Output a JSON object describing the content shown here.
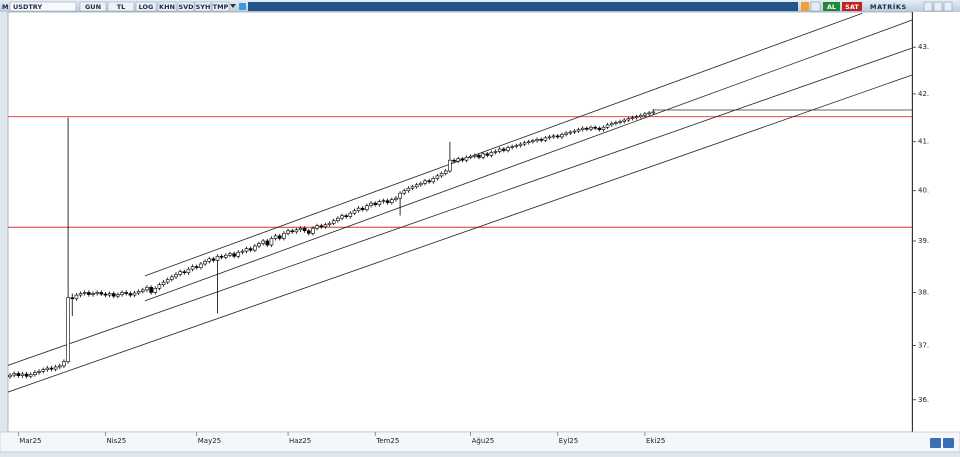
{
  "toolbar": {
    "symbol_prefix": "M",
    "symbol": "USDTRY",
    "buttons": [
      "GUN",
      "TL",
      "LOG",
      "KHN",
      "SVD",
      "SYH",
      "TMP"
    ],
    "buy": "AL",
    "sell": "SAT",
    "brand": "MATRİKS"
  },
  "chart_data": {
    "type": "candlestick",
    "log_scale": true,
    "ylim": [
      35.42,
      43.77
    ],
    "yticks": [
      {
        "value": 36,
        "label": "36."
      },
      {
        "value": 37,
        "label": "37."
      },
      {
        "value": 38,
        "label": "38."
      },
      {
        "value": 39,
        "label": "39."
      },
      {
        "value": 40,
        "label": "40."
      },
      {
        "value": 41,
        "label": "41."
      },
      {
        "value": 42,
        "label": "42."
      },
      {
        "value": 43,
        "label": "43."
      }
    ],
    "up_color": "#ffffff",
    "down_color": "#000000",
    "line_color": "#222222",
    "hline_color": "#e03030",
    "categories": [
      null,
      null,
      "Mar25",
      null,
      null,
      null,
      null,
      null,
      null,
      null,
      null,
      null,
      null,
      null,
      null,
      null,
      null,
      null,
      null,
      null,
      null,
      null,
      null,
      "Nis25",
      null,
      null,
      null,
      null,
      null,
      null,
      null,
      null,
      null,
      null,
      null,
      null,
      null,
      null,
      null,
      null,
      null,
      null,
      null,
      null,
      null,
      "May25",
      null,
      null,
      null,
      null,
      null,
      null,
      null,
      null,
      null,
      null,
      null,
      null,
      null,
      null,
      null,
      null,
      null,
      null,
      null,
      null,
      null,
      "Haz25",
      null,
      null,
      null,
      null,
      null,
      null,
      null,
      null,
      null,
      null,
      null,
      null,
      null,
      null,
      null,
      null,
      null,
      null,
      null,
      null,
      "Tem25",
      null,
      null,
      null,
      null,
      null,
      null,
      null,
      null,
      null,
      null,
      null,
      null,
      null,
      null,
      null,
      null,
      null,
      null,
      null,
      null,
      null,
      null,
      "Ağu25",
      null,
      null,
      null,
      null,
      null,
      null,
      null,
      null,
      null,
      null,
      null,
      null,
      null,
      null,
      null,
      null,
      null,
      null,
      null,
      null,
      "Eyl25",
      null,
      null,
      null,
      null,
      null,
      null,
      null,
      null,
      null,
      null,
      null,
      null,
      null,
      null,
      null,
      null,
      null,
      null,
      null,
      null,
      "Eki25",
      null,
      null
    ],
    "ohlc": [
      [
        36.42,
        36.49,
        36.38,
        36.45
      ],
      [
        36.45,
        36.52,
        36.41,
        36.48
      ],
      [
        36.48,
        36.52,
        36.4,
        36.44
      ],
      [
        36.44,
        36.51,
        36.4,
        36.47
      ],
      [
        36.47,
        36.51,
        36.39,
        36.43
      ],
      [
        36.43,
        36.5,
        36.39,
        36.46
      ],
      [
        36.46,
        36.54,
        36.42,
        36.5
      ],
      [
        36.5,
        36.56,
        36.46,
        36.52
      ],
      [
        36.52,
        36.59,
        36.48,
        36.55
      ],
      [
        36.55,
        36.62,
        36.51,
        36.58
      ],
      [
        36.58,
        36.62,
        36.52,
        36.56
      ],
      [
        36.56,
        36.64,
        36.52,
        36.6
      ],
      [
        36.6,
        36.66,
        36.56,
        36.62
      ],
      [
        36.62,
        36.74,
        36.58,
        36.7
      ],
      [
        36.7,
        41.5,
        36.66,
        37.9
      ],
      [
        37.9,
        37.98,
        37.55,
        37.88
      ],
      [
        37.88,
        37.99,
        37.84,
        37.95
      ],
      [
        37.95,
        38.02,
        37.91,
        37.98
      ],
      [
        37.98,
        38.04,
        37.94,
        38.0
      ],
      [
        38.0,
        38.04,
        37.92,
        37.96
      ],
      [
        37.96,
        38.02,
        37.92,
        37.98
      ],
      [
        37.98,
        38.04,
        37.94,
        38.0
      ],
      [
        38.0,
        38.04,
        37.93,
        37.97
      ],
      [
        37.97,
        38.01,
        37.91,
        37.95
      ],
      [
        37.95,
        38.02,
        37.91,
        37.98
      ],
      [
        37.98,
        38.02,
        37.89,
        37.93
      ],
      [
        37.93,
        38.0,
        37.89,
        37.96
      ],
      [
        37.96,
        38.04,
        37.92,
        38.0
      ],
      [
        38.0,
        38.04,
        37.94,
        37.98
      ],
      [
        37.98,
        38.02,
        37.91,
        37.95
      ],
      [
        37.95,
        38.03,
        37.91,
        37.99
      ],
      [
        37.99,
        38.06,
        37.95,
        38.02
      ],
      [
        38.02,
        38.09,
        37.98,
        38.05
      ],
      [
        38.05,
        38.14,
        38.01,
        38.1
      ],
      [
        38.1,
        38.14,
        37.96,
        38.0
      ],
      [
        38.0,
        38.12,
        37.96,
        38.08
      ],
      [
        38.08,
        38.19,
        38.04,
        38.15
      ],
      [
        38.15,
        38.24,
        38.11,
        38.2
      ],
      [
        38.2,
        38.29,
        38.16,
        38.25
      ],
      [
        38.25,
        38.34,
        38.21,
        38.3
      ],
      [
        38.3,
        38.39,
        38.26,
        38.35
      ],
      [
        38.35,
        38.44,
        38.31,
        38.4
      ],
      [
        38.4,
        38.44,
        38.34,
        38.38
      ],
      [
        38.38,
        38.49,
        38.34,
        38.45
      ],
      [
        38.45,
        38.54,
        38.41,
        38.5
      ],
      [
        38.5,
        38.54,
        38.44,
        38.48
      ],
      [
        38.48,
        38.59,
        38.44,
        38.55
      ],
      [
        38.55,
        38.64,
        38.51,
        38.6
      ],
      [
        38.6,
        38.69,
        38.56,
        38.65
      ],
      [
        38.65,
        38.69,
        38.58,
        38.62
      ],
      [
        38.62,
        38.74,
        37.6,
        38.7
      ],
      [
        38.7,
        38.74,
        38.64,
        38.68
      ],
      [
        38.68,
        38.76,
        38.64,
        38.72
      ],
      [
        38.72,
        38.79,
        38.68,
        38.75
      ],
      [
        38.75,
        38.79,
        38.66,
        38.7
      ],
      [
        38.7,
        38.82,
        38.66,
        38.78
      ],
      [
        38.78,
        38.84,
        38.74,
        38.8
      ],
      [
        38.8,
        38.89,
        38.76,
        38.85
      ],
      [
        38.85,
        38.89,
        38.78,
        38.82
      ],
      [
        38.82,
        38.94,
        38.78,
        38.9
      ],
      [
        38.9,
        38.99,
        38.86,
        38.95
      ],
      [
        38.95,
        39.04,
        38.91,
        39.0
      ],
      [
        39.0,
        39.04,
        38.88,
        38.92
      ],
      [
        38.92,
        39.09,
        38.88,
        39.05
      ],
      [
        39.05,
        39.14,
        39.01,
        39.1
      ],
      [
        39.1,
        39.14,
        39.01,
        39.05
      ],
      [
        39.05,
        39.19,
        39.01,
        39.15
      ],
      [
        39.15,
        39.24,
        39.11,
        39.2
      ],
      [
        39.2,
        39.24,
        39.14,
        39.18
      ],
      [
        39.18,
        39.26,
        39.14,
        39.22
      ],
      [
        39.22,
        39.29,
        39.18,
        39.25
      ],
      [
        39.25,
        39.29,
        39.16,
        39.2
      ],
      [
        39.2,
        39.24,
        39.11,
        39.15
      ],
      [
        39.15,
        39.29,
        39.11,
        39.25
      ],
      [
        39.25,
        39.34,
        39.21,
        39.3
      ],
      [
        39.3,
        39.34,
        39.24,
        39.28
      ],
      [
        39.28,
        39.36,
        39.24,
        39.32
      ],
      [
        39.32,
        39.39,
        39.28,
        39.35
      ],
      [
        39.35,
        39.44,
        39.31,
        39.4
      ],
      [
        39.4,
        39.49,
        39.36,
        39.45
      ],
      [
        39.45,
        39.54,
        39.41,
        39.5
      ],
      [
        39.5,
        39.54,
        39.44,
        39.48
      ],
      [
        39.48,
        39.59,
        39.44,
        39.55
      ],
      [
        39.55,
        39.64,
        39.51,
        39.6
      ],
      [
        39.6,
        39.69,
        39.56,
        39.65
      ],
      [
        39.65,
        39.69,
        39.58,
        39.62
      ],
      [
        39.62,
        39.74,
        39.58,
        39.7
      ],
      [
        39.7,
        39.79,
        39.66,
        39.75
      ],
      [
        39.75,
        39.79,
        39.68,
        39.72
      ],
      [
        39.72,
        39.82,
        39.68,
        39.78
      ],
      [
        39.78,
        39.84,
        39.74,
        39.8
      ],
      [
        39.8,
        39.84,
        39.72,
        39.76
      ],
      [
        39.76,
        39.86,
        39.72,
        39.82
      ],
      [
        39.82,
        39.89,
        39.78,
        39.85
      ],
      [
        39.85,
        39.99,
        39.5,
        39.95
      ],
      [
        39.95,
        40.04,
        39.91,
        40.0
      ],
      [
        40.0,
        40.09,
        39.96,
        40.05
      ],
      [
        40.05,
        40.12,
        40.01,
        40.08
      ],
      [
        40.08,
        40.16,
        40.04,
        40.12
      ],
      [
        40.12,
        40.19,
        40.08,
        40.15
      ],
      [
        40.15,
        40.24,
        40.11,
        40.2
      ],
      [
        40.2,
        40.24,
        40.14,
        40.18
      ],
      [
        40.18,
        40.29,
        40.14,
        40.25
      ],
      [
        40.25,
        40.34,
        40.21,
        40.3
      ],
      [
        40.3,
        40.39,
        40.26,
        40.35
      ],
      [
        40.35,
        40.44,
        40.31,
        40.4
      ],
      [
        40.4,
        41.0,
        40.36,
        40.62
      ],
      [
        40.62,
        40.66,
        40.56,
        40.6
      ],
      [
        40.6,
        40.69,
        40.56,
        40.65
      ],
      [
        40.65,
        40.69,
        40.58,
        40.62
      ],
      [
        40.62,
        40.72,
        40.58,
        40.68
      ],
      [
        40.68,
        40.74,
        40.64,
        40.7
      ],
      [
        40.7,
        40.76,
        40.66,
        40.72
      ],
      [
        40.72,
        40.76,
        40.64,
        40.68
      ],
      [
        40.68,
        40.79,
        40.64,
        40.75
      ],
      [
        40.75,
        40.79,
        40.68,
        40.72
      ],
      [
        40.72,
        40.82,
        40.68,
        40.78
      ],
      [
        40.78,
        40.84,
        40.74,
        40.8
      ],
      [
        40.8,
        40.89,
        40.76,
        40.85
      ],
      [
        40.85,
        40.89,
        40.78,
        40.82
      ],
      [
        40.82,
        40.92,
        40.78,
        40.88
      ],
      [
        40.88,
        40.94,
        40.84,
        40.9
      ],
      [
        40.9,
        40.96,
        40.86,
        40.92
      ],
      [
        40.92,
        40.99,
        40.88,
        40.95
      ],
      [
        40.95,
        41.02,
        40.91,
        40.98
      ],
      [
        40.98,
        41.04,
        40.94,
        41.0
      ],
      [
        41.0,
        41.06,
        40.96,
        41.02
      ],
      [
        41.02,
        41.09,
        40.98,
        41.05
      ],
      [
        41.05,
        41.09,
        40.99,
        41.03
      ],
      [
        41.03,
        41.12,
        40.99,
        41.08
      ],
      [
        41.08,
        41.14,
        41.04,
        41.1
      ],
      [
        41.1,
        41.16,
        41.06,
        41.12
      ],
      [
        41.12,
        41.16,
        41.06,
        41.1
      ],
      [
        41.1,
        41.19,
        41.06,
        41.15
      ],
      [
        41.15,
        41.22,
        41.11,
        41.18
      ],
      [
        41.18,
        41.24,
        41.14,
        41.2
      ],
      [
        41.2,
        41.26,
        41.16,
        41.22
      ],
      [
        41.22,
        41.29,
        41.18,
        41.25
      ],
      [
        41.25,
        41.32,
        41.21,
        41.28
      ],
      [
        41.28,
        41.32,
        41.22,
        41.26
      ],
      [
        41.26,
        41.34,
        41.22,
        41.3
      ],
      [
        41.3,
        41.34,
        41.24,
        41.28
      ],
      [
        41.28,
        41.32,
        41.21,
        41.25
      ],
      [
        41.25,
        41.34,
        41.21,
        41.3
      ],
      [
        41.3,
        41.39,
        41.26,
        41.35
      ],
      [
        41.35,
        41.42,
        41.31,
        41.38
      ],
      [
        41.38,
        41.44,
        41.34,
        41.4
      ],
      [
        41.4,
        41.46,
        41.36,
        41.42
      ],
      [
        41.42,
        41.49,
        41.38,
        41.45
      ],
      [
        41.45,
        41.52,
        41.41,
        41.48
      ],
      [
        41.48,
        41.54,
        41.44,
        41.5
      ],
      [
        41.5,
        41.56,
        41.46,
        41.52
      ],
      [
        41.52,
        41.59,
        41.48,
        41.55
      ],
      [
        41.55,
        41.62,
        41.51,
        41.58
      ],
      [
        41.58,
        41.64,
        41.54,
        41.6
      ],
      [
        41.6,
        41.68,
        41.56,
        41.62
      ]
    ],
    "hlines": [
      41.52,
      39.27
    ],
    "last_line": {
      "from": 155,
      "value": 41.66
    },
    "trendlines": [
      {
        "from": [
          32.5,
          38.32
        ],
        "to": [
          205.3,
          43.74
        ]
      },
      {
        "from": [
          32.5,
          37.84
        ],
        "to": [
          217.3,
          43.59
        ]
      },
      {
        "from": [
          -0.5,
          36.63
        ],
        "to": [
          217.3,
          42.98
        ]
      },
      {
        "from": [
          -0.5,
          36.14
        ],
        "to": [
          217.3,
          42.4
        ]
      }
    ]
  }
}
